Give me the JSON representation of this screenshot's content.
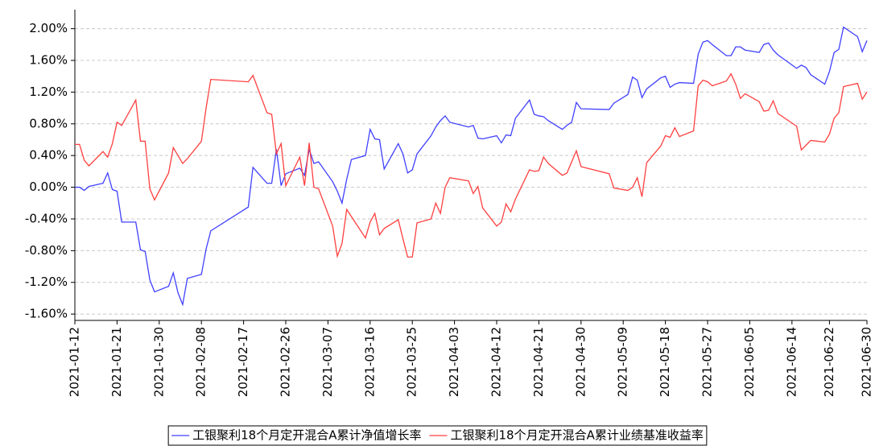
{
  "chart_data": {
    "type": "line",
    "x": [
      "2021-01-12",
      "2021-01-13",
      "2021-01-14",
      "2021-01-15",
      "2021-01-18",
      "2021-01-19",
      "2021-01-20",
      "2021-01-21",
      "2021-01-22",
      "2021-01-25",
      "2021-01-26",
      "2021-01-27",
      "2021-01-28",
      "2021-01-29",
      "2021-02-01",
      "2021-02-02",
      "2021-02-03",
      "2021-02-04",
      "2021-02-05",
      "2021-02-08",
      "2021-02-09",
      "2021-02-10",
      "2021-02-18",
      "2021-02-19",
      "2021-02-22",
      "2021-02-23",
      "2021-02-24",
      "2021-02-25",
      "2021-02-26",
      "2021-03-01",
      "2021-03-02",
      "2021-03-03",
      "2021-03-04",
      "2021-03-05",
      "2021-03-08",
      "2021-03-09",
      "2021-03-10",
      "2021-03-11",
      "2021-03-12",
      "2021-03-15",
      "2021-03-16",
      "2021-03-17",
      "2021-03-18",
      "2021-03-19",
      "2021-03-22",
      "2021-03-23",
      "2021-03-24",
      "2021-03-25",
      "2021-03-26",
      "2021-03-29",
      "2021-03-30",
      "2021-03-31",
      "2021-04-01",
      "2021-04-02",
      "2021-04-06",
      "2021-04-07",
      "2021-04-08",
      "2021-04-09",
      "2021-04-12",
      "2021-04-13",
      "2021-04-14",
      "2021-04-15",
      "2021-04-16",
      "2021-04-19",
      "2021-04-20",
      "2021-04-21",
      "2021-04-22",
      "2021-04-23",
      "2021-04-26",
      "2021-04-27",
      "2021-04-28",
      "2021-04-29",
      "2021-04-30",
      "2021-05-06",
      "2021-05-07",
      "2021-05-10",
      "2021-05-11",
      "2021-05-12",
      "2021-05-13",
      "2021-05-14",
      "2021-05-17",
      "2021-05-18",
      "2021-05-19",
      "2021-05-20",
      "2021-05-21",
      "2021-05-24",
      "2021-05-25",
      "2021-05-26",
      "2021-05-27",
      "2021-05-28",
      "2021-05-31",
      "2021-06-01",
      "2021-06-02",
      "2021-06-03",
      "2021-06-04",
      "2021-06-07",
      "2021-06-08",
      "2021-06-09",
      "2021-06-10",
      "2021-06-11",
      "2021-06-15",
      "2021-06-16",
      "2021-06-17",
      "2021-06-18",
      "2021-06-21",
      "2021-06-22",
      "2021-06-23",
      "2021-06-24",
      "2021-06-25",
      "2021-06-28",
      "2021-06-29",
      "2021-06-30"
    ],
    "series": [
      {
        "name": "工银聚利18个月定开混合A累计净值增长率",
        "color": "#4040ff",
        "values": [
          0.0,
          0.0,
          -0.04,
          0.01,
          0.05,
          0.18,
          -0.03,
          -0.05,
          -0.44,
          -0.44,
          -0.79,
          -0.81,
          -1.17,
          -1.32,
          -1.25,
          -1.08,
          -1.33,
          -1.48,
          -1.15,
          -1.1,
          -0.78,
          -0.55,
          -0.25,
          0.25,
          0.05,
          0.05,
          0.48,
          0.02,
          0.17,
          0.24,
          0.15,
          0.48,
          0.3,
          0.32,
          0.07,
          -0.05,
          -0.2,
          0.1,
          0.35,
          0.4,
          0.73,
          0.61,
          0.6,
          0.23,
          0.55,
          0.42,
          0.18,
          0.22,
          0.42,
          0.65,
          0.76,
          0.84,
          0.9,
          0.82,
          0.76,
          0.78,
          0.62,
          0.61,
          0.65,
          0.56,
          0.66,
          0.65,
          0.87,
          1.1,
          0.92,
          0.9,
          0.89,
          0.84,
          0.73,
          0.78,
          0.82,
          1.07,
          0.99,
          0.98,
          1.06,
          1.17,
          1.39,
          1.35,
          1.13,
          1.24,
          1.38,
          1.4,
          1.26,
          1.3,
          1.32,
          1.31,
          1.68,
          1.83,
          1.85,
          1.8,
          1.66,
          1.66,
          1.77,
          1.77,
          1.73,
          1.7,
          1.8,
          1.82,
          1.73,
          1.67,
          1.5,
          1.54,
          1.51,
          1.42,
          1.3,
          1.46,
          1.7,
          1.74,
          2.02,
          1.9,
          1.71,
          1.85
        ]
      },
      {
        "name": "工银聚利18个月定开混合A累计业绩基准收益率",
        "color": "#ff4040",
        "values": [
          0.54,
          0.54,
          0.34,
          0.27,
          0.45,
          0.38,
          0.55,
          0.82,
          0.78,
          1.1,
          0.58,
          0.58,
          -0.02,
          -0.16,
          0.18,
          0.5,
          0.4,
          0.3,
          0.36,
          0.58,
          1.0,
          1.36,
          1.33,
          1.41,
          0.94,
          0.92,
          0.42,
          0.55,
          0.02,
          0.38,
          0.02,
          0.56,
          0.0,
          -0.02,
          -0.49,
          -0.87,
          -0.71,
          -0.28,
          -0.37,
          -0.64,
          -0.44,
          -0.33,
          -0.6,
          -0.52,
          -0.41,
          -0.65,
          -0.88,
          -0.88,
          -0.45,
          -0.4,
          -0.2,
          -0.33,
          0.0,
          0.12,
          0.08,
          -0.08,
          0.01,
          -0.26,
          -0.49,
          -0.44,
          -0.21,
          -0.31,
          -0.15,
          0.22,
          0.2,
          0.21,
          0.38,
          0.3,
          0.15,
          0.18,
          0.32,
          0.46,
          0.26,
          0.17,
          -0.01,
          -0.04,
          0.0,
          0.12,
          -0.12,
          0.31,
          0.52,
          0.65,
          0.63,
          0.75,
          0.64,
          0.71,
          1.28,
          1.35,
          1.33,
          1.28,
          1.34,
          1.43,
          1.3,
          1.12,
          1.18,
          1.08,
          0.96,
          0.97,
          1.09,
          0.93,
          0.77,
          0.47,
          0.53,
          0.59,
          0.57,
          0.67,
          0.87,
          0.94,
          1.27,
          1.31,
          1.11,
          1.2
        ]
      }
    ],
    "xlim": [
      "2021-01-12",
      "2021-06-30"
    ],
    "xticks": [
      "2021-01-12",
      "2021-01-21",
      "2021-01-30",
      "2021-02-08",
      "2021-02-17",
      "2021-02-26",
      "2021-03-07",
      "2021-03-16",
      "2021-03-25",
      "2021-04-03",
      "2021-04-12",
      "2021-04-21",
      "2021-04-30",
      "2021-05-09",
      "2021-05-18",
      "2021-05-27",
      "2021-06-05",
      "2021-06-14",
      "2021-06-22",
      "2021-06-30"
    ],
    "ylim": [
      -1.68,
      2.24
    ],
    "yticks": [
      {
        "value": -1.6,
        "label": "-1.60%"
      },
      {
        "value": -1.2,
        "label": "-1.20%"
      },
      {
        "value": -0.8,
        "label": "-0.80%"
      },
      {
        "value": -0.4,
        "label": "-0.40%"
      },
      {
        "value": 0,
        "label": "0.00%"
      },
      {
        "value": 0.4,
        "label": "0.40%"
      },
      {
        "value": 0.8,
        "label": "0.80%"
      },
      {
        "value": 1.2,
        "label": "1.20%"
      },
      {
        "value": 1.6,
        "label": "1.60%"
      },
      {
        "value": 2.0,
        "label": "2.00%"
      }
    ],
    "grid": true,
    "legend": "bottom"
  }
}
